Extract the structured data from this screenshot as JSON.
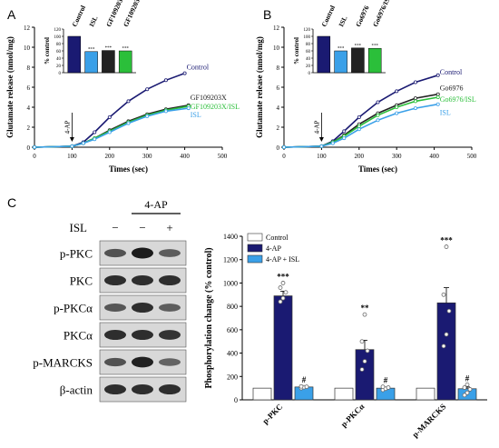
{
  "panels": {
    "A": "A",
    "B": "B",
    "C": "C"
  },
  "colors": {
    "control": "#1a1a72",
    "isl": "#3aa0e8",
    "gf": "#222222",
    "gfisl": "#2bbf3a",
    "blot_bg": "#d8d8d8"
  },
  "chart_data": [
    {
      "type": "line",
      "panel": "A",
      "xlabel": "Times (sec)",
      "ylabel": "Glutamate release (nmol/mg)",
      "xlim": [
        0,
        500
      ],
      "ylim": [
        0,
        12
      ],
      "xticks": [
        "0",
        "100",
        "200",
        "300",
        "400",
        "500"
      ],
      "yticks": [
        "0",
        "2",
        "4",
        "6",
        "8",
        "10",
        "12"
      ],
      "annotation": "4-AP",
      "annotation_x": 100,
      "series": [
        {
          "name": "Control",
          "color": "#1a1a72",
          "x": [
            0,
            100,
            130,
            160,
            200,
            250,
            300,
            350,
            400
          ],
          "y": [
            0,
            0.1,
            0.5,
            1.5,
            3.0,
            4.6,
            5.8,
            6.7,
            7.4
          ]
        },
        {
          "name": "GF109203X",
          "color": "#222222",
          "x": [
            0,
            100,
            130,
            160,
            200,
            250,
            300,
            350,
            410
          ],
          "y": [
            0,
            0.1,
            0.4,
            0.9,
            1.7,
            2.6,
            3.3,
            3.8,
            4.2
          ]
        },
        {
          "name": "GF109203X/ISL",
          "color": "#2bbf3a",
          "x": [
            0,
            100,
            130,
            160,
            200,
            250,
            300,
            350,
            410
          ],
          "y": [
            0,
            0.1,
            0.4,
            0.9,
            1.6,
            2.5,
            3.2,
            3.7,
            4.1
          ]
        },
        {
          "name": "ISL",
          "color": "#3aa0e8",
          "x": [
            0,
            100,
            130,
            160,
            200,
            250,
            300,
            350,
            410
          ],
          "y": [
            0,
            0.1,
            0.4,
            0.8,
            1.5,
            2.4,
            3.1,
            3.6,
            3.9
          ]
        }
      ],
      "inset": {
        "type": "bar",
        "ylabel": "% control",
        "ylim": [
          0,
          120
        ],
        "yticks": [
          "0",
          "20",
          "40",
          "60",
          "80",
          "100",
          "120"
        ],
        "categories": [
          "Control",
          "ISL",
          "GF109203X",
          "GF109203X/ISL"
        ],
        "values": [
          100,
          58,
          61,
          60
        ],
        "colors": [
          "#1a1a72",
          "#3aa0e8",
          "#222222",
          "#2bbf3a"
        ],
        "marks": [
          "",
          "***",
          "***",
          "***"
        ]
      }
    },
    {
      "type": "line",
      "panel": "B",
      "xlabel": "Times (sec)",
      "ylabel": "Glutamate release (nmol/mg)",
      "xlim": [
        0,
        500
      ],
      "ylim": [
        0,
        12
      ],
      "xticks": [
        "0",
        "100",
        "200",
        "300",
        "400",
        "500"
      ],
      "yticks": [
        "0",
        "2",
        "4",
        "6",
        "8",
        "10",
        "12"
      ],
      "annotation": "4-AP",
      "annotation_x": 100,
      "series": [
        {
          "name": "Control",
          "color": "#1a1a72",
          "x": [
            0,
            100,
            130,
            160,
            200,
            250,
            300,
            350,
            410
          ],
          "y": [
            0,
            0.1,
            0.6,
            1.6,
            3.0,
            4.5,
            5.6,
            6.5,
            7.2
          ]
        },
        {
          "name": "Go6976",
          "color": "#222222",
          "x": [
            0,
            100,
            130,
            160,
            200,
            250,
            300,
            350,
            410
          ],
          "y": [
            0,
            0.1,
            0.5,
            1.2,
            2.3,
            3.4,
            4.2,
            4.9,
            5.3
          ]
        },
        {
          "name": "Go6976/ISL",
          "color": "#2bbf3a",
          "x": [
            0,
            100,
            130,
            160,
            200,
            250,
            300,
            350,
            410
          ],
          "y": [
            0,
            0.1,
            0.5,
            1.1,
            2.1,
            3.2,
            4.0,
            4.6,
            5.0
          ]
        },
        {
          "name": "ISL",
          "color": "#3aa0e8",
          "x": [
            0,
            100,
            130,
            160,
            200,
            250,
            300,
            350,
            410
          ],
          "y": [
            0,
            0.1,
            0.4,
            0.9,
            1.8,
            2.7,
            3.4,
            3.9,
            4.3
          ]
        }
      ],
      "inset": {
        "type": "bar",
        "ylabel": "% control",
        "ylim": [
          0,
          120
        ],
        "yticks": [
          "0",
          "20",
          "40",
          "60",
          "80",
          "100",
          "120"
        ],
        "categories": [
          "Control",
          "ISL",
          "Go6976",
          "Go6976/ISL"
        ],
        "values": [
          100,
          60,
          68,
          67
        ],
        "colors": [
          "#1a1a72",
          "#3aa0e8",
          "#222222",
          "#2bbf3a"
        ],
        "marks": [
          "",
          "***",
          "***",
          "***"
        ]
      }
    },
    {
      "type": "bar",
      "panel": "C",
      "ylabel": "Phosphorylation change (% control)",
      "ylim": [
        0,
        1400
      ],
      "yticks": [
        "0",
        "200",
        "400",
        "600",
        "800",
        "1000",
        "1200",
        "1400"
      ],
      "categories": [
        "p-PKC",
        "p-PKCα",
        "p-MARCKS"
      ],
      "legend": [
        "Control",
        "4-AP",
        "4-AP + ISL"
      ],
      "legend_position": "top-left",
      "series": [
        {
          "name": "Control",
          "color": "#ffffff",
          "values": [
            100,
            100,
            100
          ],
          "marks": [
            "",
            "",
            ""
          ]
        },
        {
          "name": "4-AP",
          "color": "#1a1a72",
          "values": [
            890,
            430,
            830
          ],
          "errors": [
            40,
            80,
            130
          ],
          "marks": [
            "***",
            "**",
            "***"
          ]
        },
        {
          "name": "4-AP + ISL",
          "color": "#3aa0e8",
          "values": [
            110,
            100,
            95
          ],
          "errors": [
            8,
            10,
            15
          ],
          "marks": [
            "#",
            "#",
            "#"
          ]
        }
      ],
      "points": [
        [
          [],
          [
            840,
            870,
            920,
            960,
            1000
          ],
          [
            100,
            108,
            112,
            115
          ]
        ],
        [
          [],
          [
            260,
            330,
            420,
            500,
            730
          ],
          [
            85,
            95,
            105,
            112
          ]
        ],
        [
          [],
          [
            460,
            560,
            760,
            900,
            1310
          ],
          [
            40,
            60,
            90,
            105,
            130
          ]
        ]
      ]
    }
  ],
  "blot": {
    "treatment_label": "4-AP",
    "isl_label": "ISL",
    "isl_signs": [
      "−",
      "−",
      "+"
    ],
    "rows": [
      {
        "label": "p-PKC",
        "bands": [
          0.55,
          1.0,
          0.45
        ]
      },
      {
        "label": "PKC",
        "bands": [
          0.85,
          0.85,
          0.85
        ]
      },
      {
        "label": "p-PKCα",
        "bands": [
          0.5,
          0.85,
          0.45
        ]
      },
      {
        "label": "PKCα",
        "bands": [
          0.85,
          0.85,
          0.8
        ]
      },
      {
        "label": "p-MARCKS",
        "bands": [
          0.55,
          0.95,
          0.4
        ]
      },
      {
        "label": "β-actin",
        "bands": [
          0.85,
          0.85,
          0.85
        ]
      }
    ]
  }
}
